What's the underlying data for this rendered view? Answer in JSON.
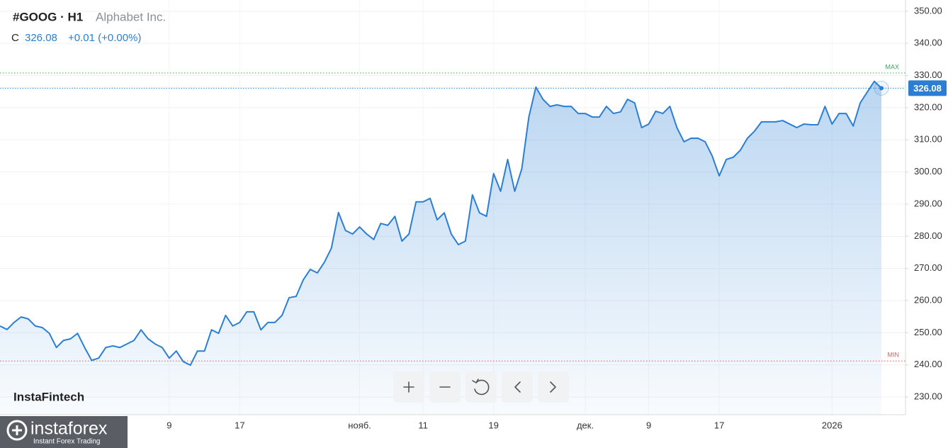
{
  "chart_data": {
    "type": "area",
    "title": "#GOOG · H1",
    "subtitle": "Alphabet Inc.",
    "price_prefix": "C",
    "last_price": 326.08,
    "change_label": "+0.01 (+0.00%)",
    "watermark": "InstaFintech",
    "color": "#2a7fd4",
    "grid": true,
    "ylim": [
      224.5,
      353.5
    ],
    "yticks": [
      {
        "value": 230,
        "label": "230.00"
      },
      {
        "value": 240,
        "label": "240.00"
      },
      {
        "value": 250,
        "label": "250.00"
      },
      {
        "value": 260,
        "label": "260.00"
      },
      {
        "value": 270,
        "label": "270.00"
      },
      {
        "value": 280,
        "label": "280.00"
      },
      {
        "value": 290,
        "label": "290.00"
      },
      {
        "value": 300,
        "label": "300.00"
      },
      {
        "value": 310,
        "label": "310.00"
      },
      {
        "value": 320,
        "label": "320.00"
      },
      {
        "value": 330,
        "label": "330.00"
      },
      {
        "value": 340,
        "label": "340.00"
      },
      {
        "value": 350,
        "label": "350.00"
      }
    ],
    "max_line": {
      "label": "MAX",
      "value": 330.8,
      "color": "#3aa55d"
    },
    "min_line": {
      "label": "MIN",
      "value": 241.2,
      "color": "#e0585b"
    },
    "categories": [
      null,
      null,
      null,
      null,
      null,
      null,
      null,
      null,
      null,
      null,
      null,
      null,
      null,
      null,
      null,
      null,
      null,
      null,
      null,
      null,
      null,
      null,
      null,
      null,
      "9",
      null,
      null,
      null,
      null,
      null,
      null,
      null,
      null,
      null,
      "17",
      null,
      null,
      null,
      null,
      null,
      null,
      null,
      null,
      null,
      null,
      null,
      null,
      null,
      null,
      null,
      null,
      "нояб.",
      null,
      null,
      null,
      null,
      null,
      null,
      null,
      null,
      "11",
      null,
      null,
      null,
      null,
      null,
      null,
      null,
      null,
      null,
      "19",
      null,
      null,
      null,
      null,
      null,
      null,
      null,
      null,
      null,
      null,
      null,
      null,
      "дек.",
      null,
      null,
      null,
      null,
      null,
      null,
      null,
      null,
      "9",
      null,
      null,
      null,
      null,
      null,
      null,
      null,
      null,
      null,
      "17",
      null,
      null,
      null,
      null,
      null,
      null,
      null,
      null,
      null,
      null,
      null,
      null,
      null,
      null,
      null,
      "2026",
      null,
      null,
      null,
      null,
      null,
      null,
      null
    ],
    "values": [
      252.1,
      251.0,
      253.2,
      254.9,
      254.3,
      252.1,
      251.6,
      249.8,
      245.4,
      247.6,
      248.1,
      249.8,
      245.4,
      241.4,
      242.1,
      245.4,
      245.9,
      245.4,
      246.5,
      247.6,
      250.9,
      248.1,
      246.5,
      245.4,
      242.1,
      244.3,
      241.0,
      239.9,
      244.3,
      244.3,
      250.9,
      249.8,
      255.4,
      252.1,
      253.2,
      256.5,
      256.5,
      250.9,
      253.2,
      253.2,
      255.4,
      260.9,
      261.3,
      266.4,
      269.7,
      268.6,
      271.9,
      276.3,
      287.4,
      281.8,
      280.7,
      282.9,
      280.7,
      279.0,
      284.0,
      283.4,
      286.2,
      278.5,
      280.7,
      290.7,
      290.7,
      291.8,
      285.1,
      287.3,
      280.7,
      277.4,
      278.5,
      292.9,
      287.3,
      286.2,
      299.5,
      294.0,
      303.9,
      294.0,
      301.0,
      317.1,
      326.4,
      322.6,
      320.4,
      320.9,
      320.4,
      320.4,
      318.2,
      318.2,
      317.1,
      317.1,
      320.4,
      318.2,
      318.7,
      322.6,
      321.5,
      313.8,
      314.9,
      318.9,
      318.2,
      320.4,
      313.8,
      309.4,
      310.5,
      310.5,
      309.4,
      305.0,
      298.8,
      303.9,
      304.6,
      306.8,
      310.5,
      312.7,
      315.6,
      315.6,
      315.6,
      316.0,
      314.9,
      313.8,
      314.9,
      314.7,
      314.7,
      320.4,
      314.9,
      318.2,
      318.2,
      314.3,
      321.5,
      324.9,
      328.2,
      326.08
    ]
  },
  "logo": {
    "name": "instaforex",
    "tagline": "Instant Forex Trading"
  }
}
